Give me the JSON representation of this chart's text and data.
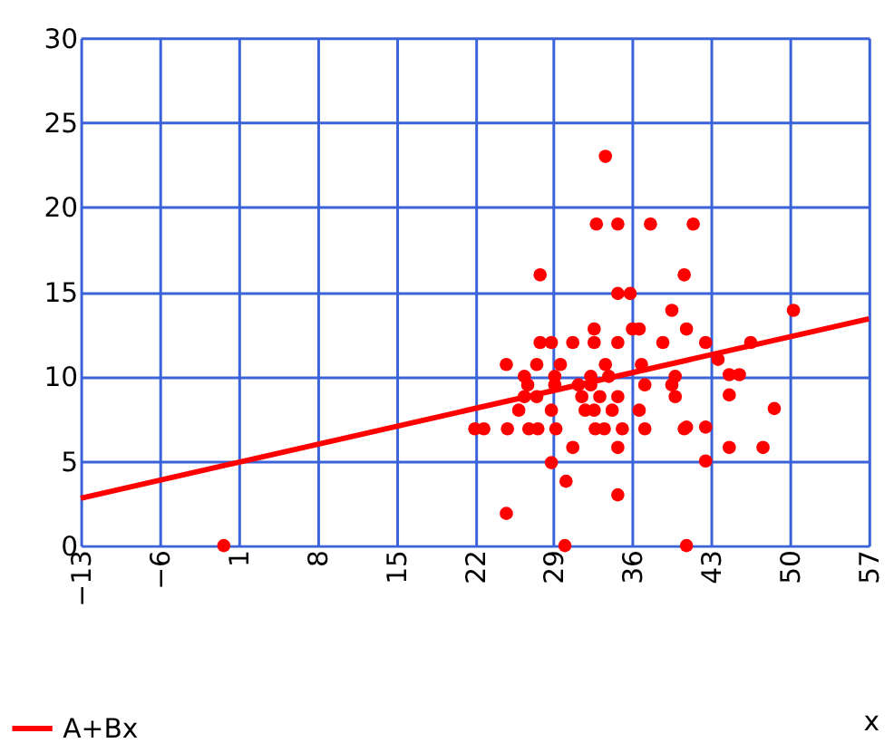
{
  "chart_data": {
    "type": "scatter",
    "xlabel": "x",
    "xlim": [
      -13,
      57
    ],
    "ylim": [
      0,
      30
    ],
    "xticks": [
      -13,
      -6,
      1,
      8,
      15,
      22,
      29,
      36,
      43,
      50,
      57
    ],
    "yticks": [
      0,
      5,
      10,
      15,
      20,
      25,
      30
    ],
    "grid": true,
    "legend": "bottom left",
    "marker": "circle",
    "series": [
      {
        "color": "#ff0000",
        "x": [
          -0.3,
          30,
          40.8,
          24.8,
          30.1,
          34.7,
          28.8,
          42.5,
          33.6,
          32.8,
          34.7,
          37.6,
          41.4,
          27.8,
          40.6,
          34.7,
          35.8,
          39.5,
          50.3,
          22,
          22.8,
          24.9,
          26.8,
          27.6,
          29.2,
          32.7,
          33.5,
          35.1,
          37.1,
          40.6,
          25.9,
          28.8,
          31.8,
          32.6,
          34.2,
          36.6,
          26.4,
          27.5,
          31.5,
          33.1,
          34.7,
          39.8,
          26.7,
          29.1,
          31.2,
          32.3,
          37.1,
          39.5,
          26.4,
          29.1,
          32.3,
          33.9,
          39.8,
          24.8,
          27.5,
          29.6,
          33.6,
          36.8,
          27.8,
          28.8,
          30.7,
          32.6,
          34.7,
          38.7,
          32.6,
          36,
          36.6,
          30.7,
          34.7,
          40.8,
          42.5,
          46.5,
          43.6,
          44.6,
          45.5,
          44.6,
          48.6,
          40.8,
          42.5,
          44.6,
          47.6
        ],
        "values": [
          0,
          0,
          0,
          1.9,
          3.8,
          3,
          4.9,
          5,
          23,
          19,
          19,
          19,
          19,
          16,
          16,
          14.9,
          14.9,
          13.9,
          13.9,
          6.9,
          6.9,
          6.9,
          6.9,
          6.9,
          6.9,
          6.9,
          6.9,
          6.9,
          6.9,
          6.9,
          8,
          8,
          8,
          8,
          8,
          8,
          8.8,
          8.8,
          8.8,
          8.8,
          8.8,
          8.8,
          9.5,
          9.5,
          9.5,
          9.5,
          9.5,
          9.5,
          10,
          10,
          10,
          10,
          10,
          10.7,
          10.7,
          10.7,
          10.7,
          10.7,
          12,
          12,
          12,
          12,
          12,
          12,
          12.8,
          12.8,
          12.8,
          5.8,
          5.8,
          12.8,
          12,
          12,
          11,
          10.1,
          10.1,
          8.9,
          8.1,
          7,
          7,
          5.8,
          5.8
        ]
      },
      {
        "type": "line",
        "name": "A+Bx",
        "color": "#ff0000",
        "line_style": "solid",
        "marker": "none",
        "x": [
          -13,
          57
        ],
        "values": [
          2.8,
          13.4
        ]
      }
    ]
  }
}
